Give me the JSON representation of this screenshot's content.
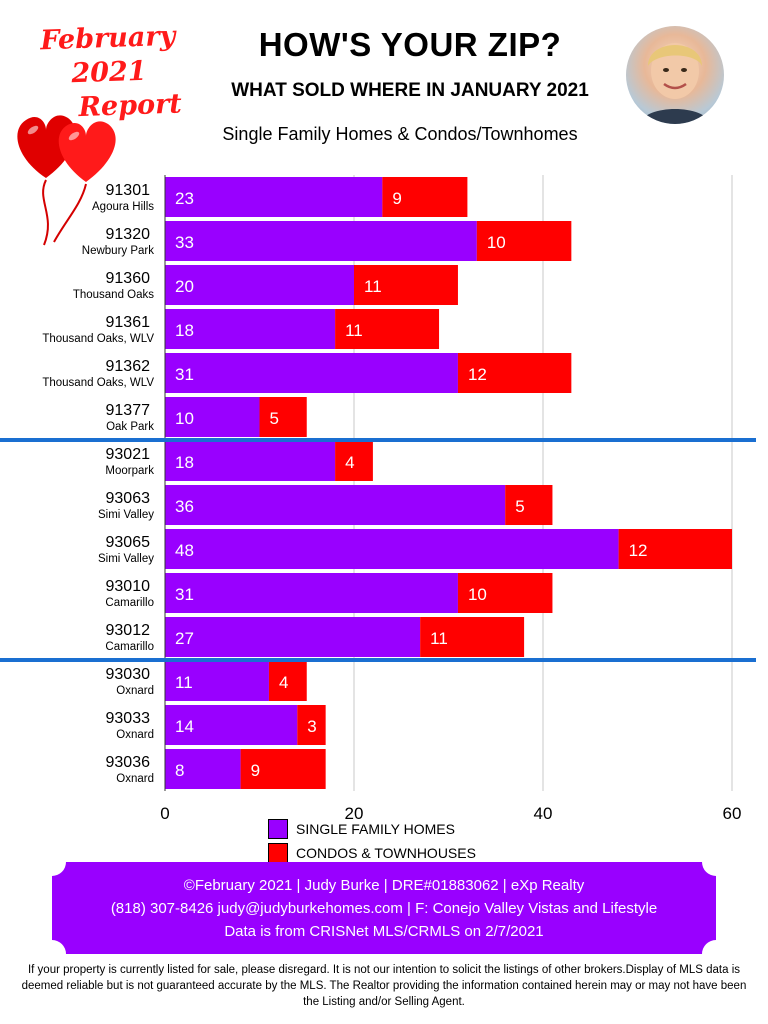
{
  "header": {
    "report_line1": "February 2021",
    "report_line2": "Report",
    "title": "HOW'S YOUR ZIP?",
    "subtitle": "WHAT SOLD WHERE IN JANUARY 2021",
    "caption": "Single Family Homes & Condos/Townhomes"
  },
  "chart_data": {
    "type": "bar",
    "orientation": "horizontal",
    "stacked": true,
    "categories": [
      "91301",
      "91320",
      "91360",
      "91361",
      "91362",
      "91377",
      "93021",
      "93063",
      "93065",
      "93010",
      "93012",
      "93030",
      "93033",
      "93036"
    ],
    "category_sublabels": [
      "Agoura Hills",
      "Newbury Park",
      "Thousand Oaks",
      "Thousand Oaks, WLV",
      "Thousand Oaks, WLV",
      "Oak Park",
      "Moorpark",
      "Simi Valley",
      "Simi Valley",
      "Camarillo",
      "Camarillo",
      "Oxnard",
      "Oxnard",
      "Oxnard"
    ],
    "series": [
      {
        "name": "SINGLE FAMILY HOMES",
        "color": "#9900ff",
        "values": [
          23,
          33,
          20,
          18,
          31,
          10,
          18,
          36,
          48,
          31,
          27,
          11,
          14,
          8
        ]
      },
      {
        "name": "CONDOS & TOWNHOUSES",
        "color": "#ff0000",
        "values": [
          9,
          10,
          11,
          11,
          12,
          5,
          4,
          5,
          12,
          10,
          11,
          4,
          3,
          9
        ]
      }
    ],
    "xlim": [
      0,
      60
    ],
    "xticks": [
      0,
      20,
      40,
      60
    ],
    "grid": true,
    "group_dividers_after": [
      "91377",
      "93012"
    ],
    "divider_color": "#1a6fd1",
    "legend_position": "bottom"
  },
  "footer": {
    "line1": "©February 2021  |  Judy Burke  |  DRE#01883062  |  eXp Realty",
    "line2": "(818) 307-8426  judy@judyburkehomes.com | F: Conejo Valley Vistas and Lifestyle",
    "line3": "Data is from CRISNet MLS/CRMLS on 2/7/2021",
    "band_color": "#9900ff"
  },
  "disclaimer": "If your property is currently listed for sale, please disregard. It is not our intention to solicit the listings of other brokers.Display of MLS data is deemed reliable but is not guaranteed accurate by the MLS. The Realtor providing the information contained herein may or may not have been the Listing and/or Selling Agent."
}
